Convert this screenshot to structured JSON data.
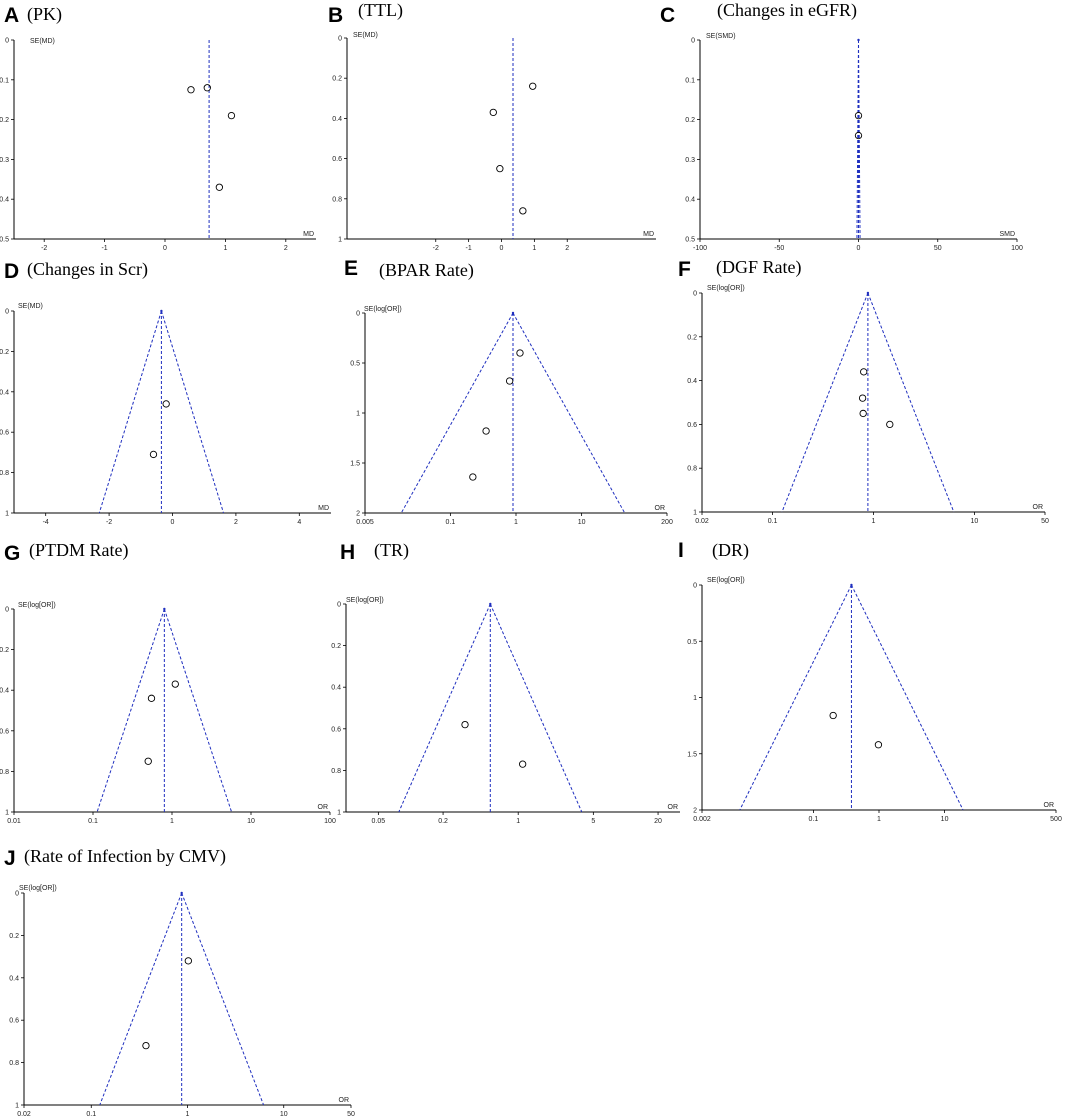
{
  "chart_data": [
    {
      "panel": "A",
      "title": "(PK)",
      "type": "scatter",
      "xlabel": "MD",
      "ylabel": "SE(MD)",
      "xscale": "linear",
      "xlim": [
        -2.5,
        2.5
      ],
      "xticks": [
        "-2",
        "-1",
        "0",
        "1",
        "2"
      ],
      "ylim": [
        0,
        0.5
      ],
      "yticks": [
        "0",
        "0.1",
        "0.2",
        "0.3",
        "0.4",
        "0.5"
      ],
      "summary": 0.73,
      "funnel": false,
      "points": [
        {
          "x": 0.43,
          "y": 0.125
        },
        {
          "x": 0.7,
          "y": 0.12
        },
        {
          "x": 1.1,
          "y": 0.19
        },
        {
          "x": 0.9,
          "y": 0.37
        }
      ]
    },
    {
      "panel": "B",
      "title": "(TTL)",
      "type": "scatter",
      "xlabel": "MD",
      "ylabel": "SE(MD)",
      "xscale": "linear",
      "xlim": [
        -4.7,
        4.7
      ],
      "xticks": [
        "-2",
        "-1",
        "0",
        "1",
        "2"
      ],
      "ylim": [
        0,
        1
      ],
      "yticks": [
        "0",
        "0.2",
        "0.4",
        "0.6",
        "0.8",
        "1"
      ],
      "summary": 0.35,
      "funnel": false,
      "points": [
        {
          "x": -0.25,
          "y": 0.37
        },
        {
          "x": 0.95,
          "y": 0.24
        },
        {
          "x": -0.05,
          "y": 0.65
        },
        {
          "x": 0.65,
          "y": 0.86
        }
      ]
    },
    {
      "panel": "C",
      "title": "(Changes in eGFR)",
      "type": "scatter",
      "xlabel": "SMD",
      "ylabel": "SE(SMD)",
      "xscale": "linear",
      "xlim": [
        -100,
        100
      ],
      "xticks": [
        "-100",
        "-50",
        "0",
        "50",
        "100"
      ],
      "ylim": [
        0,
        0.5
      ],
      "yticks": [
        "0",
        "0.1",
        "0.2",
        "0.3",
        "0.4",
        "0.5"
      ],
      "summary": 0,
      "funnel": true,
      "points": [
        {
          "x": 0,
          "y": 0.19
        },
        {
          "x": 0,
          "y": 0.24
        }
      ]
    },
    {
      "panel": "D",
      "title": "(Changes in Scr)",
      "type": "scatter",
      "xlabel": "MD",
      "ylabel": "SE(MD)",
      "xscale": "linear",
      "xlim": [
        -5,
        5
      ],
      "xticks": [
        "-4",
        "-2",
        "0",
        "2",
        "4"
      ],
      "ylim": [
        0,
        1
      ],
      "yticks": [
        "0",
        "0.2",
        "0.4",
        "0.6",
        "0.8",
        "1"
      ],
      "summary": -0.35,
      "funnel": true,
      "points": [
        {
          "x": -0.2,
          "y": 0.46
        },
        {
          "x": -0.6,
          "y": 0.71
        }
      ]
    },
    {
      "panel": "E",
      "title": "(BPAR Rate)",
      "type": "scatter",
      "xlabel": "OR",
      "ylabel": "SE(log[OR])",
      "xscale": "log",
      "xlim": [
        0.005,
        200
      ],
      "xticks": [
        "0.005",
        "0.1",
        "1",
        "10",
        "200"
      ],
      "ylim": [
        0,
        2
      ],
      "yticks": [
        "0",
        "0.5",
        "1",
        "1.5",
        "2"
      ],
      "summary": 0.9,
      "funnel": true,
      "points": [
        {
          "x": 1.15,
          "y": 0.4
        },
        {
          "x": 0.8,
          "y": 0.68
        },
        {
          "x": 0.35,
          "y": 1.18
        },
        {
          "x": 0.22,
          "y": 1.64
        }
      ]
    },
    {
      "panel": "F",
      "title": "(DGF Rate)",
      "type": "scatter",
      "xlabel": "OR",
      "ylabel": "SE(log[OR])",
      "xscale": "log",
      "xlim": [
        0.02,
        50
      ],
      "xticks": [
        "0.02",
        "0.1",
        "1",
        "10",
        "50"
      ],
      "ylim": [
        0,
        1
      ],
      "yticks": [
        "0",
        "0.2",
        "0.4",
        "0.6",
        "0.8",
        "1"
      ],
      "summary": 0.88,
      "funnel": true,
      "points": [
        {
          "x": 0.8,
          "y": 0.36
        },
        {
          "x": 0.78,
          "y": 0.48
        },
        {
          "x": 0.79,
          "y": 0.55
        },
        {
          "x": 1.45,
          "y": 0.6
        }
      ]
    },
    {
      "panel": "G",
      "title": "(PTDM Rate)",
      "type": "scatter",
      "xlabel": "OR",
      "ylabel": "SE(log[OR])",
      "xscale": "log",
      "xlim": [
        0.01,
        100
      ],
      "xticks": [
        "0.01",
        "0.1",
        "1",
        "10",
        "100"
      ],
      "ylim": [
        0,
        1
      ],
      "yticks": [
        "0",
        "0.2",
        "0.4",
        "0.6",
        "0.8",
        "1"
      ],
      "summary": 0.8,
      "funnel": true,
      "points": [
        {
          "x": 1.1,
          "y": 0.37
        },
        {
          "x": 0.55,
          "y": 0.44
        },
        {
          "x": 0.5,
          "y": 0.75
        }
      ]
    },
    {
      "panel": "H",
      "title": "(TR)",
      "type": "scatter",
      "xlabel": "OR",
      "ylabel": "SE(log[OR])",
      "xscale": "log",
      "xlim": [
        0.025,
        32
      ],
      "xticks": [
        "0.05",
        "0.2",
        "1",
        "5",
        "20"
      ],
      "ylim": [
        0,
        1
      ],
      "yticks": [
        "0",
        "0.2",
        "0.4",
        "0.6",
        "0.8",
        "1"
      ],
      "summary": 0.55,
      "funnel": true,
      "points": [
        {
          "x": 0.32,
          "y": 0.58
        },
        {
          "x": 1.1,
          "y": 0.77
        }
      ]
    },
    {
      "panel": "I",
      "title": "(DR)",
      "type": "scatter",
      "xlabel": "OR",
      "ylabel": "SE(log[OR])",
      "xscale": "log",
      "xlim": [
        0.002,
        500
      ],
      "xticks": [
        "0.002",
        "0.1",
        "1",
        "10",
        "500"
      ],
      "ylim": [
        0,
        2
      ],
      "yticks": [
        "0",
        "0.5",
        "1",
        "1.5",
        "2"
      ],
      "summary": 0.38,
      "funnel": true,
      "points": [
        {
          "x": 0.2,
          "y": 1.16
        },
        {
          "x": 0.98,
          "y": 1.42
        }
      ]
    },
    {
      "panel": "J",
      "title": "(Rate of Infection by CMV)",
      "type": "scatter",
      "xlabel": "OR",
      "ylabel": "SE(log[OR])",
      "xscale": "log",
      "xlim": [
        0.02,
        50
      ],
      "xticks": [
        "0.02",
        "0.1",
        "1",
        "10",
        "50"
      ],
      "ylim": [
        0,
        1
      ],
      "yticks": [
        "0",
        "0.2",
        "0.4",
        "0.6",
        "0.8",
        "1"
      ],
      "summary": 0.87,
      "funnel": true,
      "points": [
        {
          "x": 1.02,
          "y": 0.32
        },
        {
          "x": 0.37,
          "y": 0.72
        }
      ]
    }
  ],
  "colors": {
    "reference_line": "#1f2fbf",
    "axis": "#000000",
    "marker_stroke": "#000000"
  }
}
